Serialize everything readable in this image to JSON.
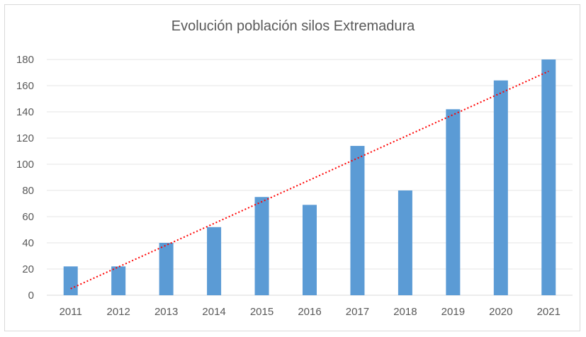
{
  "chart_data": {
    "type": "bar",
    "title": "Evolución población silos Extremadura",
    "xlabel": "",
    "ylabel": "",
    "categories": [
      "2011",
      "2012",
      "2013",
      "2014",
      "2015",
      "2016",
      "2017",
      "2018",
      "2019",
      "2020",
      "2021"
    ],
    "series": [
      {
        "values": [
          22,
          22,
          40,
          52,
          75,
          69,
          114,
          80,
          142,
          164,
          180
        ],
        "color": "#5b9bd5"
      }
    ],
    "trendline": {
      "type": "linear",
      "style": "dotted",
      "color": "#ff0000",
      "start": 5,
      "end": 171
    },
    "ylim": [
      0,
      180
    ],
    "yticks": [
      0,
      20,
      40,
      60,
      80,
      100,
      120,
      140,
      160,
      180
    ],
    "grid": true,
    "legend": "none"
  }
}
